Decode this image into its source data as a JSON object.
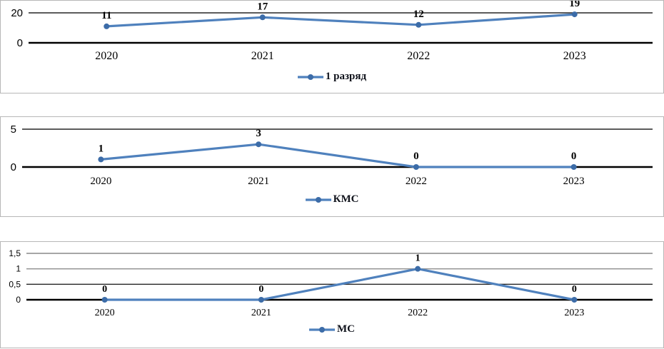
{
  "colors": {
    "line": "#4f81bd",
    "marker": "#3c6ca8",
    "grid_light": "#a6a6a6",
    "grid_gray": "#8e8e8e",
    "grid_dark": "#262626",
    "axis": "#000000",
    "panel_border": "#b7b7b7",
    "legend_text": "#10131c",
    "label_text": "#000000"
  },
  "chart_data": [
    {
      "type": "line",
      "legend": "1 разряд",
      "categories": [
        "2020",
        "2021",
        "2022",
        "2023"
      ],
      "values": [
        11,
        17,
        12,
        19
      ],
      "ylim": [
        0,
        20
      ],
      "y_ticks": [
        {
          "v": 20,
          "label": "20",
          "style": "thin-dark"
        },
        {
          "v": 0,
          "label": "0",
          "style": "axis"
        }
      ],
      "data_labels": [
        "11",
        "17",
        "12",
        "19"
      ],
      "legend_position": "bottom",
      "grid": true
    },
    {
      "type": "line",
      "legend": "КМС",
      "categories": [
        "2020",
        "2021",
        "2022",
        "2023"
      ],
      "values": [
        1,
        3,
        0,
        0
      ],
      "ylim": [
        0,
        5
      ],
      "y_ticks": [
        {
          "v": 5,
          "label": "5",
          "style": "thin-dark"
        },
        {
          "v": 0,
          "label": "0",
          "style": "axis"
        }
      ],
      "data_labels": [
        "1",
        "3",
        "0",
        "0"
      ],
      "legend_position": "bottom",
      "grid": true
    },
    {
      "type": "line",
      "legend": "МС",
      "categories": [
        "2020",
        "2021",
        "2022",
        "2023"
      ],
      "values": [
        0,
        0,
        1,
        0
      ],
      "ylim": [
        0,
        1.5
      ],
      "y_ticks": [
        {
          "v": 1.5,
          "label": "1,5",
          "style": "gray-light"
        },
        {
          "v": 1,
          "label": "1",
          "style": "gray"
        },
        {
          "v": 0.5,
          "label": "0,5",
          "style": "thin-dark"
        },
        {
          "v": 0,
          "label": "0",
          "style": "axis"
        }
      ],
      "data_labels": [
        "0",
        "0",
        "1",
        "0"
      ],
      "legend_position": "bottom",
      "grid": true
    }
  ]
}
